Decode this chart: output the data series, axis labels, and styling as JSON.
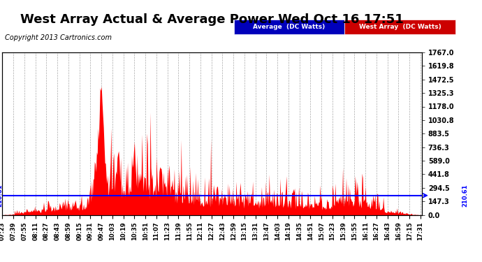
{
  "title": "West Array Actual & Average Power Wed Oct 16 17:51",
  "copyright": "Copyright 2013 Cartronics.com",
  "avg_value": 210.61,
  "ymax": 1767.0,
  "ymin": 0.0,
  "yticks": [
    0.0,
    147.3,
    294.5,
    441.8,
    589.0,
    736.3,
    883.5,
    1030.8,
    1178.0,
    1325.3,
    1472.5,
    1619.8,
    1767.0
  ],
  "bg_color": "#ffffff",
  "plot_bg_color": "#ffffff",
  "grid_color": "#aaaaaa",
  "avg_line_color": "#0000ff",
  "west_fill_color": "#ff0000",
  "legend_avg_bg": "#0000bb",
  "legend_west_bg": "#cc0000",
  "title_fontsize": 13,
  "copyright_fontsize": 7,
  "tick_fontsize": 6,
  "ytick_fontsize": 7,
  "num_points": 611
}
